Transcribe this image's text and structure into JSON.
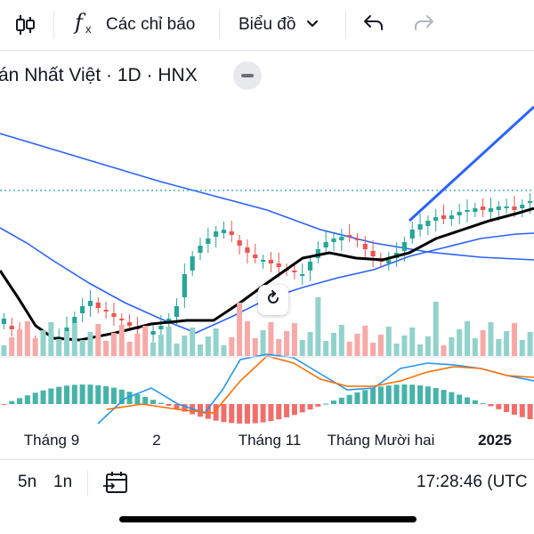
{
  "toolbar": {
    "indicators_label": "Các chỉ báo",
    "chart_type_label": "Biểu đồ"
  },
  "chart_header": {
    "title": "án Nhất Việt · 1D · HNX"
  },
  "chart_data": {
    "type": "candlestick",
    "x_tick_labels": [
      "Tháng 9",
      "2",
      "Tháng 11",
      "Tháng Mười hai",
      "2025"
    ],
    "panes": [
      "price",
      "volume",
      "macd"
    ],
    "colors": {
      "up": "#26a69a",
      "down": "#ef5350",
      "moving_average_black": "#000000",
      "moving_average_blue": "#2962ff",
      "macd_line": "#2196f3",
      "signal_line": "#ff6d00",
      "trend_line": "#2962ff",
      "price_line": "#26a69a"
    },
    "grid": false
  },
  "bottom_bar": {
    "range_5n": "5n",
    "range_1n": "1n",
    "clock": "17:28:46 (UTC"
  }
}
